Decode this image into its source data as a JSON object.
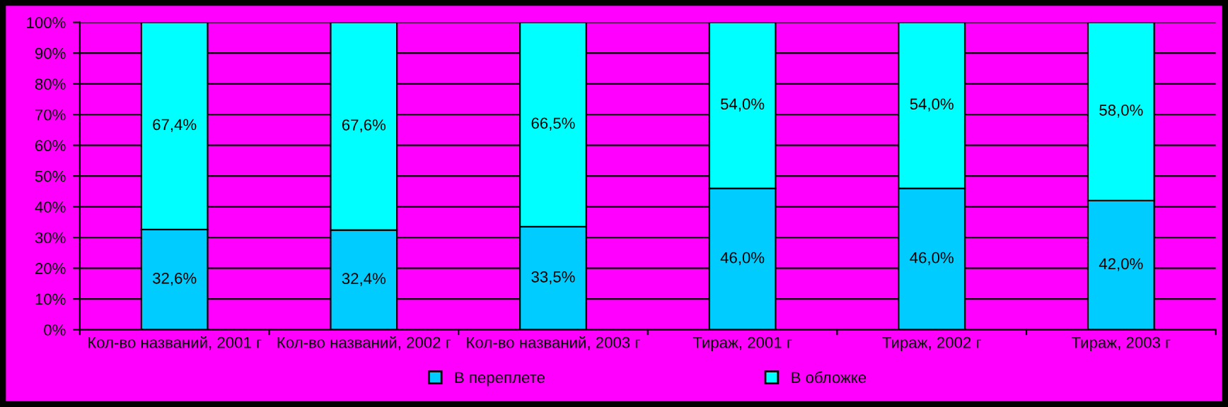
{
  "chart_data": {
    "type": "bar",
    "stacked": true,
    "categories": [
      "Кол-во названий, 2001 г",
      "Кол-во названий, 2002 г",
      "Кол-во названий, 2003 г",
      "Тираж, 2001 г",
      "Тираж, 2002 г",
      "Тираж, 2003 г"
    ],
    "series": [
      {
        "name": "В переплете",
        "color": "#00ccff",
        "values": [
          32.6,
          32.4,
          33.5,
          46.0,
          46.0,
          42.0
        ],
        "value_labels": [
          "32,6%",
          "32,4%",
          "33,5%",
          "46,0%",
          "46,0%",
          "42,0%"
        ]
      },
      {
        "name": "В обложке",
        "color": "#00ffff",
        "values": [
          67.4,
          67.6,
          66.5,
          54.0,
          54.0,
          58.0
        ],
        "value_labels": [
          "67,4%",
          "67,6%",
          "66,5%",
          "54,0%",
          "54,0%",
          "58,0%"
        ]
      }
    ],
    "ylim": [
      0,
      100
    ],
    "yticks": [
      {
        "value": 0,
        "label": "0%"
      },
      {
        "value": 10,
        "label": "10%"
      },
      {
        "value": 20,
        "label": "20%"
      },
      {
        "value": 30,
        "label": "30%"
      },
      {
        "value": 40,
        "label": "40%"
      },
      {
        "value": 50,
        "label": "50%"
      },
      {
        "value": 60,
        "label": "60%"
      },
      {
        "value": 70,
        "label": "70%"
      },
      {
        "value": 80,
        "label": "80%"
      },
      {
        "value": 90,
        "label": "90%"
      },
      {
        "value": 100,
        "label": "100%"
      }
    ],
    "grid": "y",
    "legend": "bottom"
  }
}
